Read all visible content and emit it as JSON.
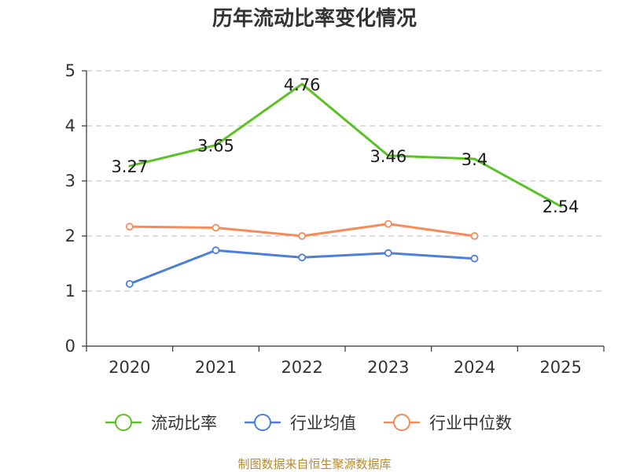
{
  "chart_data": {
    "type": "line",
    "title": "历年流动比率变化情况",
    "categories": [
      "2020",
      "2021",
      "2022",
      "2023",
      "2024",
      "2025"
    ],
    "ylim": [
      0,
      5
    ],
    "yticks": [
      0,
      1,
      2,
      3,
      4,
      5
    ],
    "grid": true,
    "legend_position": "bottom",
    "series": [
      {
        "name": "流动比率",
        "color": "#5cc126",
        "values": [
          3.27,
          3.65,
          4.76,
          3.46,
          3.4,
          2.54
        ],
        "labels": [
          "3.27",
          "3.65",
          "4.76",
          "3.46",
          "3.4",
          "2.54"
        ],
        "show_labels": true,
        "show_markers": false
      },
      {
        "name": "行业均值",
        "color": "#4e7fd8",
        "values": [
          1.13,
          1.74,
          1.61,
          1.69,
          1.59,
          null
        ],
        "show_labels": false,
        "show_markers": true
      },
      {
        "name": "行业中位数",
        "color": "#f48b5b",
        "values": [
          2.17,
          2.15,
          2.0,
          2.22,
          2.0,
          null
        ],
        "show_labels": false,
        "show_markers": true
      }
    ],
    "source": "制图数据来自恒生聚源数据库"
  }
}
